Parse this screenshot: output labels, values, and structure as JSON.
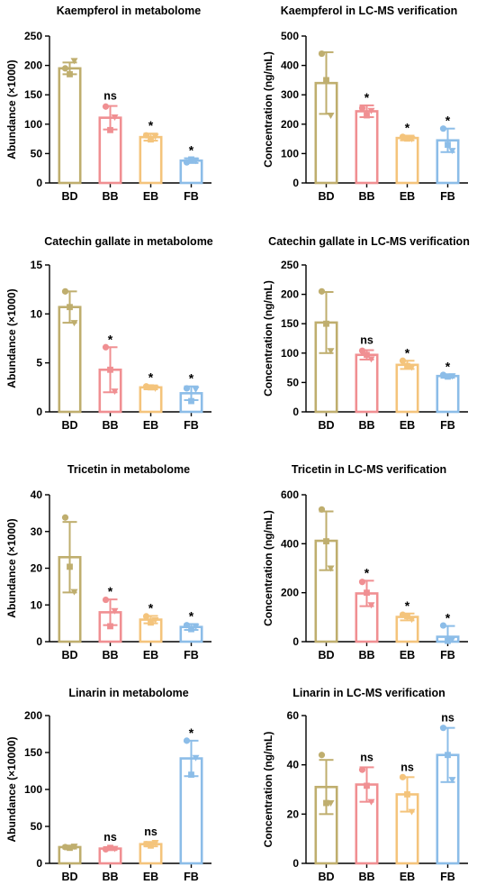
{
  "colors": {
    "BD": "#bfae6e",
    "BB": "#f08f92",
    "EB": "#f4c47c",
    "FB": "#8cbde8",
    "axis": "#000000",
    "text": "#000000"
  },
  "chart_data": [
    {
      "type": "bar",
      "title": "Kaempferol in metabolome",
      "ylabel": "Abundance (×1000)",
      "xlabel": "",
      "categories": [
        "BD",
        "BB",
        "EB",
        "FB"
      ],
      "values": [
        195,
        111,
        78,
        38
      ],
      "errors": [
        10,
        20,
        6,
        4
      ],
      "points": [
        [
          195,
          185,
          208
        ],
        [
          130,
          90,
          112
        ],
        [
          81,
          74,
          79
        ],
        [
          35,
          40,
          38
        ]
      ],
      "marks": [
        "",
        "ns",
        "*",
        "*"
      ],
      "ylim": [
        0,
        250
      ],
      "yticks": [
        0,
        50,
        100,
        150,
        200,
        250
      ]
    },
    {
      "type": "bar",
      "title": "Kaempferol in LC-MS verification",
      "ylabel": "Concentration (ng/mL)",
      "xlabel": "",
      "categories": [
        "BD",
        "BB",
        "EB",
        "FB"
      ],
      "values": [
        340,
        244,
        153,
        145
      ],
      "errors": [
        105,
        20,
        8,
        40
      ],
      "points": [
        [
          440,
          350,
          230
        ],
        [
          255,
          230,
          246
        ],
        [
          157,
          151,
          150
        ],
        [
          185,
          130,
          110
        ]
      ],
      "marks": [
        "",
        "*",
        "*",
        "*"
      ],
      "ylim": [
        0,
        500
      ],
      "yticks": [
        0,
        100,
        200,
        300,
        400,
        500
      ]
    },
    {
      "type": "bar",
      "title": "Catechin gallate in metabolome",
      "ylabel": "Abundance (×1000)",
      "xlabel": "",
      "categories": [
        "BD",
        "BB",
        "EB",
        "FB"
      ],
      "values": [
        10.7,
        4.3,
        2.5,
        1.9
      ],
      "errors": [
        1.6,
        2.3,
        0.2,
        0.7
      ],
      "points": [
        [
          12.3,
          10.7,
          9.1
        ],
        [
          6.6,
          4.3,
          2.1
        ],
        [
          2.6,
          2.5,
          2.4
        ],
        [
          2.4,
          1.1,
          2.3
        ]
      ],
      "marks": [
        "",
        "*",
        "*",
        "*"
      ],
      "ylim": [
        0,
        15
      ],
      "yticks": [
        0,
        5,
        10,
        15
      ]
    },
    {
      "type": "bar",
      "title": "Catechin gallate in LC-MS verification",
      "ylabel": "Concentration (ng/mL)",
      "xlabel": "",
      "categories": [
        "BD",
        "BB",
        "EB",
        "FB"
      ],
      "values": [
        152,
        97,
        80,
        61
      ],
      "errors": [
        52,
        8,
        7,
        3
      ],
      "points": [
        [
          205,
          150,
          104
        ],
        [
          104,
          97,
          90
        ],
        [
          87,
          78,
          76
        ],
        [
          63,
          60,
          61
        ]
      ],
      "marks": [
        "",
        "ns",
        "*",
        "*"
      ],
      "ylim": [
        0,
        250
      ],
      "yticks": [
        0,
        50,
        100,
        150,
        200,
        250
      ]
    },
    {
      "type": "bar",
      "title": "Tricetin in metabolome",
      "ylabel": "Abundance (×1000)",
      "xlabel": "",
      "categories": [
        "BD",
        "BB",
        "EB",
        "FB"
      ],
      "values": [
        23,
        8,
        6,
        4
      ],
      "errors": [
        9.6,
        3.5,
        1,
        0.8
      ],
      "points": [
        [
          33.8,
          20.4,
          13.6
        ],
        [
          11.4,
          4.2,
          8.4
        ],
        [
          6.9,
          5.2,
          5.9
        ],
        [
          4.5,
          3.4,
          4.1
        ]
      ],
      "marks": [
        "",
        "*",
        "*",
        "*"
      ],
      "ylim": [
        0,
        40
      ],
      "yticks": [
        0,
        10,
        20,
        30,
        40
      ]
    },
    {
      "type": "bar",
      "title": "Tricetin in LC-MS verification",
      "ylabel": "Concentration (ng/mL)",
      "xlabel": "",
      "categories": [
        "BD",
        "BB",
        "EB",
        "FB"
      ],
      "values": [
        412,
        197,
        101,
        20
      ],
      "errors": [
        120,
        52,
        14,
        44
      ],
      "points": [
        [
          540,
          410,
          300
        ],
        [
          244,
          200,
          150
        ],
        [
          110,
          104,
          91
        ],
        [
          66,
          3,
          10
        ]
      ],
      "marks": [
        "",
        "*",
        "*",
        "*"
      ],
      "ylim": [
        0,
        600
      ],
      "yticks": [
        0,
        200,
        400,
        600
      ]
    },
    {
      "type": "bar",
      "title": "Linarin in metabolome",
      "ylabel": "Abundance (×10000)",
      "xlabel": "",
      "categories": [
        "BD",
        "BB",
        "EB",
        "FB"
      ],
      "values": [
        22,
        20,
        26,
        142
      ],
      "errors": [
        2,
        2,
        3,
        24
      ],
      "points": [
        [
          22,
          21,
          23
        ],
        [
          19,
          21,
          20
        ],
        [
          26,
          24,
          28
        ],
        [
          166,
          120,
          143
        ]
      ],
      "marks": [
        "",
        "ns",
        "ns",
        "*"
      ],
      "ylim": [
        0,
        200
      ],
      "yticks": [
        0,
        50,
        100,
        150,
        200
      ]
    },
    {
      "type": "bar",
      "title": "Linarin in LC-MS verification",
      "ylabel": "Concentration (ng/mL)",
      "xlabel": "",
      "categories": [
        "BD",
        "BB",
        "EB",
        "FB"
      ],
      "values": [
        31,
        32,
        28,
        44
      ],
      "errors": [
        11,
        7,
        7,
        11
      ],
      "points": [
        [
          44,
          24.5,
          24.5
        ],
        [
          38,
          31.5,
          25
        ],
        [
          35,
          28,
          21
        ],
        [
          55,
          44,
          34
        ]
      ],
      "marks": [
        "",
        "ns",
        "ns",
        "ns"
      ],
      "ylim": [
        0,
        60
      ],
      "yticks": [
        0,
        20,
        40,
        60
      ]
    }
  ]
}
